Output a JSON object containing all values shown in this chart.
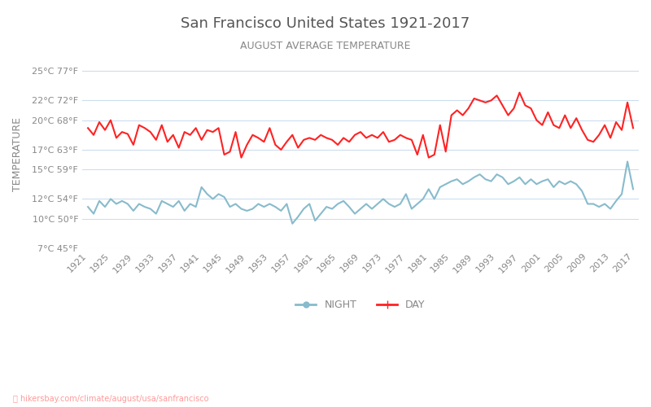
{
  "title": "San Francisco United States 1921-2017",
  "subtitle": "AUGUST AVERAGE TEMPERATURE",
  "ylabel": "TEMPERATURE",
  "footer": "hikersbay.com/climate/august/usa/sanfrancisco",
  "title_color": "#555555",
  "subtitle_color": "#888888",
  "ylabel_color": "#888888",
  "background_color": "#ffffff",
  "grid_color": "#ccddee",
  "years": [
    1921,
    1922,
    1923,
    1924,
    1925,
    1926,
    1927,
    1928,
    1929,
    1930,
    1931,
    1932,
    1933,
    1934,
    1935,
    1936,
    1937,
    1938,
    1939,
    1940,
    1941,
    1942,
    1943,
    1944,
    1945,
    1946,
    1947,
    1948,
    1949,
    1950,
    1951,
    1952,
    1953,
    1954,
    1955,
    1956,
    1957,
    1958,
    1959,
    1960,
    1961,
    1962,
    1963,
    1964,
    1965,
    1966,
    1967,
    1968,
    1969,
    1970,
    1971,
    1972,
    1973,
    1974,
    1975,
    1976,
    1977,
    1978,
    1979,
    1980,
    1981,
    1982,
    1983,
    1984,
    1985,
    1986,
    1987,
    1988,
    1989,
    1990,
    1991,
    1992,
    1993,
    1994,
    1995,
    1996,
    1997,
    1998,
    1999,
    2000,
    2001,
    2002,
    2003,
    2004,
    2005,
    2006,
    2007,
    2008,
    2009,
    2010,
    2011,
    2012,
    2013,
    2014,
    2015,
    2016,
    2017
  ],
  "day_temps": [
    19.2,
    18.5,
    19.8,
    19.0,
    20.0,
    18.2,
    18.8,
    18.6,
    17.5,
    19.5,
    19.2,
    18.8,
    18.0,
    19.5,
    17.8,
    18.5,
    17.2,
    18.8,
    18.5,
    19.2,
    18.0,
    19.0,
    18.8,
    19.2,
    16.5,
    16.8,
    18.8,
    16.2,
    17.5,
    18.5,
    18.2,
    17.8,
    19.2,
    17.5,
    17.0,
    17.8,
    18.5,
    17.2,
    18.0,
    18.2,
    18.0,
    18.5,
    18.2,
    18.0,
    17.5,
    18.2,
    17.8,
    18.5,
    18.8,
    18.2,
    18.5,
    18.2,
    18.8,
    17.8,
    18.0,
    18.5,
    18.2,
    18.0,
    16.5,
    18.5,
    16.2,
    16.5,
    19.5,
    16.8,
    20.5,
    21.0,
    20.5,
    21.2,
    22.2,
    22.0,
    21.8,
    22.0,
    22.5,
    21.5,
    20.5,
    21.2,
    22.8,
    21.5,
    21.2,
    20.0,
    19.5,
    20.8,
    19.5,
    19.2,
    20.5,
    19.2,
    20.2,
    19.0,
    18.0,
    17.8,
    18.5,
    19.5,
    18.2,
    19.8,
    19.0,
    21.8,
    19.2
  ],
  "night_temps": [
    11.2,
    10.5,
    11.8,
    11.2,
    12.0,
    11.5,
    11.8,
    11.5,
    10.8,
    11.5,
    11.2,
    11.0,
    10.5,
    11.8,
    11.5,
    11.2,
    11.8,
    10.8,
    11.5,
    11.2,
    13.2,
    12.5,
    12.0,
    12.5,
    12.2,
    11.2,
    11.5,
    11.0,
    10.8,
    11.0,
    11.5,
    11.2,
    11.5,
    11.2,
    10.8,
    11.5,
    9.5,
    10.2,
    11.0,
    11.5,
    9.8,
    10.5,
    11.2,
    11.0,
    11.5,
    11.8,
    11.2,
    10.5,
    11.0,
    11.5,
    11.0,
    11.5,
    12.0,
    11.5,
    11.2,
    11.5,
    12.5,
    11.0,
    11.5,
    12.0,
    13.0,
    12.0,
    13.2,
    13.5,
    13.8,
    14.0,
    13.5,
    13.8,
    14.2,
    14.5,
    14.0,
    13.8,
    14.5,
    14.2,
    13.5,
    13.8,
    14.2,
    13.5,
    14.0,
    13.5,
    13.8,
    14.0,
    13.2,
    13.8,
    13.5,
    13.8,
    13.5,
    12.8,
    11.5,
    11.5,
    11.2,
    11.5,
    11.0,
    11.8,
    12.5,
    15.8,
    13.0
  ],
  "day_color": "#ff2222",
  "night_color": "#88bbcc",
  "day_linewidth": 1.5,
  "night_linewidth": 1.5,
  "yticks_c": [
    7,
    10,
    12,
    15,
    17,
    20,
    22,
    25
  ],
  "ytick_labels": [
    "7°C 45°F",
    "10°C 50°F",
    "12°C 54°F",
    "15°C 59°F",
    "17°C 63°F",
    "20°C 68°F",
    "22°C 72°F",
    "25°C 77°F"
  ],
  "xtick_years": [
    1921,
    1925,
    1929,
    1933,
    1937,
    1941,
    1945,
    1949,
    1953,
    1957,
    1961,
    1965,
    1969,
    1973,
    1977,
    1981,
    1985,
    1989,
    1993,
    1997,
    2001,
    2005,
    2009,
    2013,
    2017
  ],
  "ylim_min": 7,
  "ylim_max": 26,
  "legend_night_label": "NIGHT",
  "legend_day_label": "DAY",
  "tick_color": "#888888",
  "footer_color": "#ff9999"
}
